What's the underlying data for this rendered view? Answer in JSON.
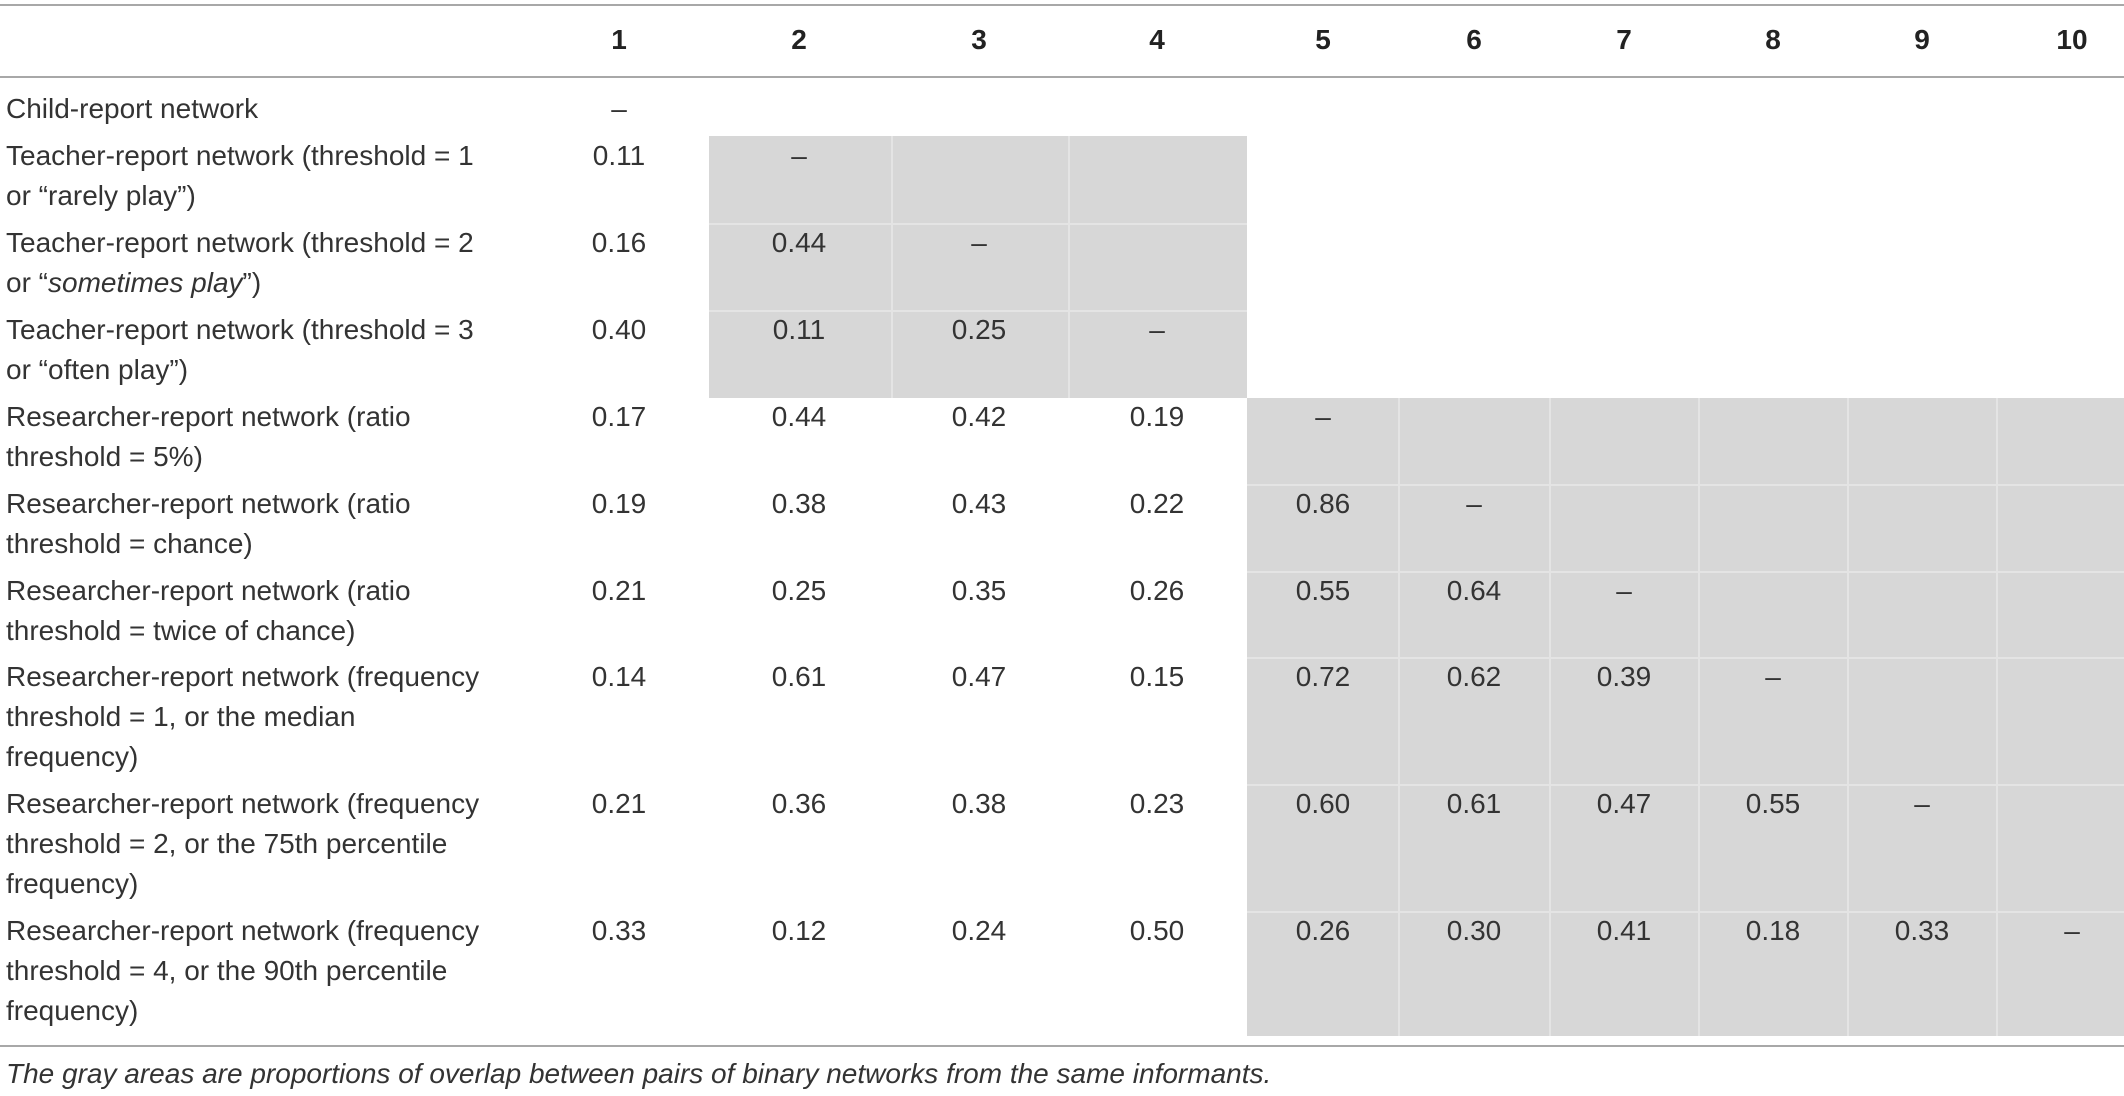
{
  "table": {
    "column_headers": [
      "1",
      "2",
      "3",
      "4",
      "5",
      "6",
      "7",
      "8",
      "9",
      "10"
    ],
    "rows": [
      {
        "label": [
          "Child-report network"
        ],
        "cells": [
          "–"
        ]
      },
      {
        "label": [
          "Teacher-report network (threshold = 1",
          "or “rarely play”)"
        ],
        "cells": [
          "0.11",
          "–"
        ]
      },
      {
        "label": [
          "Teacher-report network (threshold = 2",
          "or “",
          "sometimes play",
          "”)"
        ],
        "cells": [
          "0.16",
          "0.44",
          "–"
        ]
      },
      {
        "label": [
          "Teacher-report network (threshold = 3",
          "or “often play”)"
        ],
        "cells": [
          "0.40",
          "0.11",
          "0.25",
          "–"
        ]
      },
      {
        "label": [
          "Researcher-report network (ratio",
          "threshold = 5%)"
        ],
        "cells": [
          "0.17",
          "0.44",
          "0.42",
          "0.19",
          "–"
        ]
      },
      {
        "label": [
          "Researcher-report network (ratio",
          "threshold = chance)"
        ],
        "cells": [
          "0.19",
          "0.38",
          "0.43",
          "0.22",
          "0.86",
          "–"
        ]
      },
      {
        "label": [
          "Researcher-report network (ratio",
          "threshold = twice of chance)"
        ],
        "cells": [
          "0.21",
          "0.25",
          "0.35",
          "0.26",
          "0.55",
          "0.64",
          "–"
        ]
      },
      {
        "label": [
          "Researcher-report network (frequency",
          "threshold = 1, or the median",
          "frequency)"
        ],
        "cells": [
          "0.14",
          "0.61",
          "0.47",
          "0.15",
          "0.72",
          "0.62",
          "0.39",
          "–"
        ]
      },
      {
        "label": [
          "Researcher-report network (frequency",
          "threshold = 2, or the 75th percentile",
          "frequency)"
        ],
        "cells": [
          "0.21",
          "0.36",
          "0.38",
          "0.23",
          "0.60",
          "0.61",
          "0.47",
          "0.55",
          "–"
        ]
      },
      {
        "label": [
          "Researcher-report network (frequency",
          "threshold = 4, or the 90th percentile",
          "frequency)"
        ],
        "cells": [
          "0.33",
          "0.12",
          "0.24",
          "0.50",
          "0.26",
          "0.30",
          "0.41",
          "0.18",
          "0.33",
          "–"
        ]
      }
    ],
    "footnote": "The gray areas are proportions of overlap between pairs of binary networks from the same informants.",
    "colors": {
      "shade": "#d7d7d7",
      "rule": "#a8a8a8",
      "text": "#333333"
    }
  }
}
